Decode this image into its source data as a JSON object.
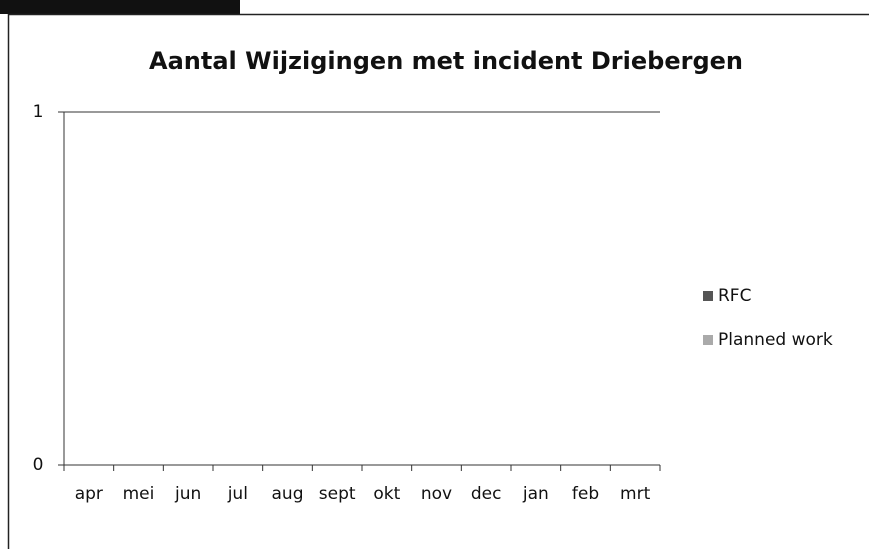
{
  "chart_data": {
    "type": "bar",
    "title": "Aantal Wijzigingen met incident Driebergen",
    "categories": [
      "apr",
      "mei",
      "jun",
      "jul",
      "aug",
      "sept",
      "okt",
      "nov",
      "dec",
      "jan",
      "feb",
      "mrt"
    ],
    "series": [
      {
        "name": "RFC",
        "color": "#555555",
        "values": [
          0,
          0,
          0,
          0,
          0,
          0,
          0,
          0,
          0,
          0,
          0,
          0
        ]
      },
      {
        "name": "Planned work",
        "color": "#aaaaaa",
        "values": [
          0,
          0,
          0,
          0,
          0,
          0,
          0,
          0,
          0,
          0,
          0,
          0
        ]
      }
    ],
    "ylim": [
      0,
      1
    ],
    "yticks": [
      0,
      1
    ],
    "grid": true,
    "legend": "right"
  }
}
